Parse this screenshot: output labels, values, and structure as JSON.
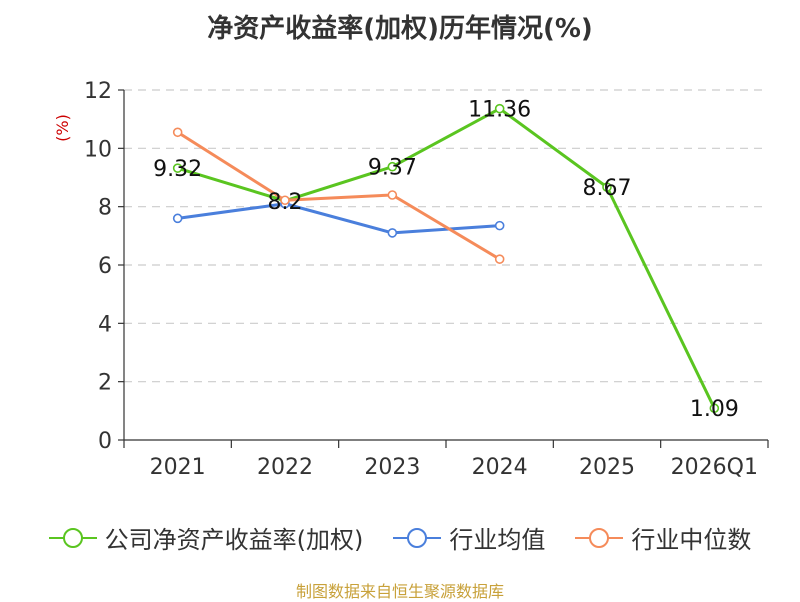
{
  "title": "净资产收益率(加权)历年情况(%)",
  "footer": "制图数据来自恒生聚源数据库",
  "colors": {
    "company": "#5ac520",
    "industry_avg": "#4a7fdc",
    "industry_median": "#f58b5a",
    "ylabel": "#cc0000"
  },
  "chart_data": {
    "type": "line",
    "title": "净资产收益率(加权)历年情况(%)",
    "xlabel": "",
    "ylabel": "(%)",
    "categories": [
      "2021",
      "2022",
      "2023",
      "2024",
      "2025",
      "2026Q1"
    ],
    "ylim": [
      0,
      12
    ],
    "yticks": [
      0,
      2,
      4,
      6,
      8,
      10,
      12
    ],
    "grid": true,
    "legend_position": "bottom",
    "series": [
      {
        "name": "公司净资产收益率(加权)",
        "color_key": "company",
        "values": [
          9.32,
          8.2,
          9.37,
          11.36,
          8.67,
          1.09
        ],
        "labels": [
          "9.32",
          "8.2",
          "9.37",
          "11.36",
          "8.67",
          "1.09"
        ]
      },
      {
        "name": "行业均值",
        "color_key": "industry_avg",
        "values": [
          7.6,
          8.1,
          7.1,
          7.35,
          null,
          null
        ]
      },
      {
        "name": "行业中位数",
        "color_key": "industry_median",
        "values": [
          10.55,
          8.22,
          8.4,
          6.2,
          null,
          null
        ]
      }
    ]
  }
}
